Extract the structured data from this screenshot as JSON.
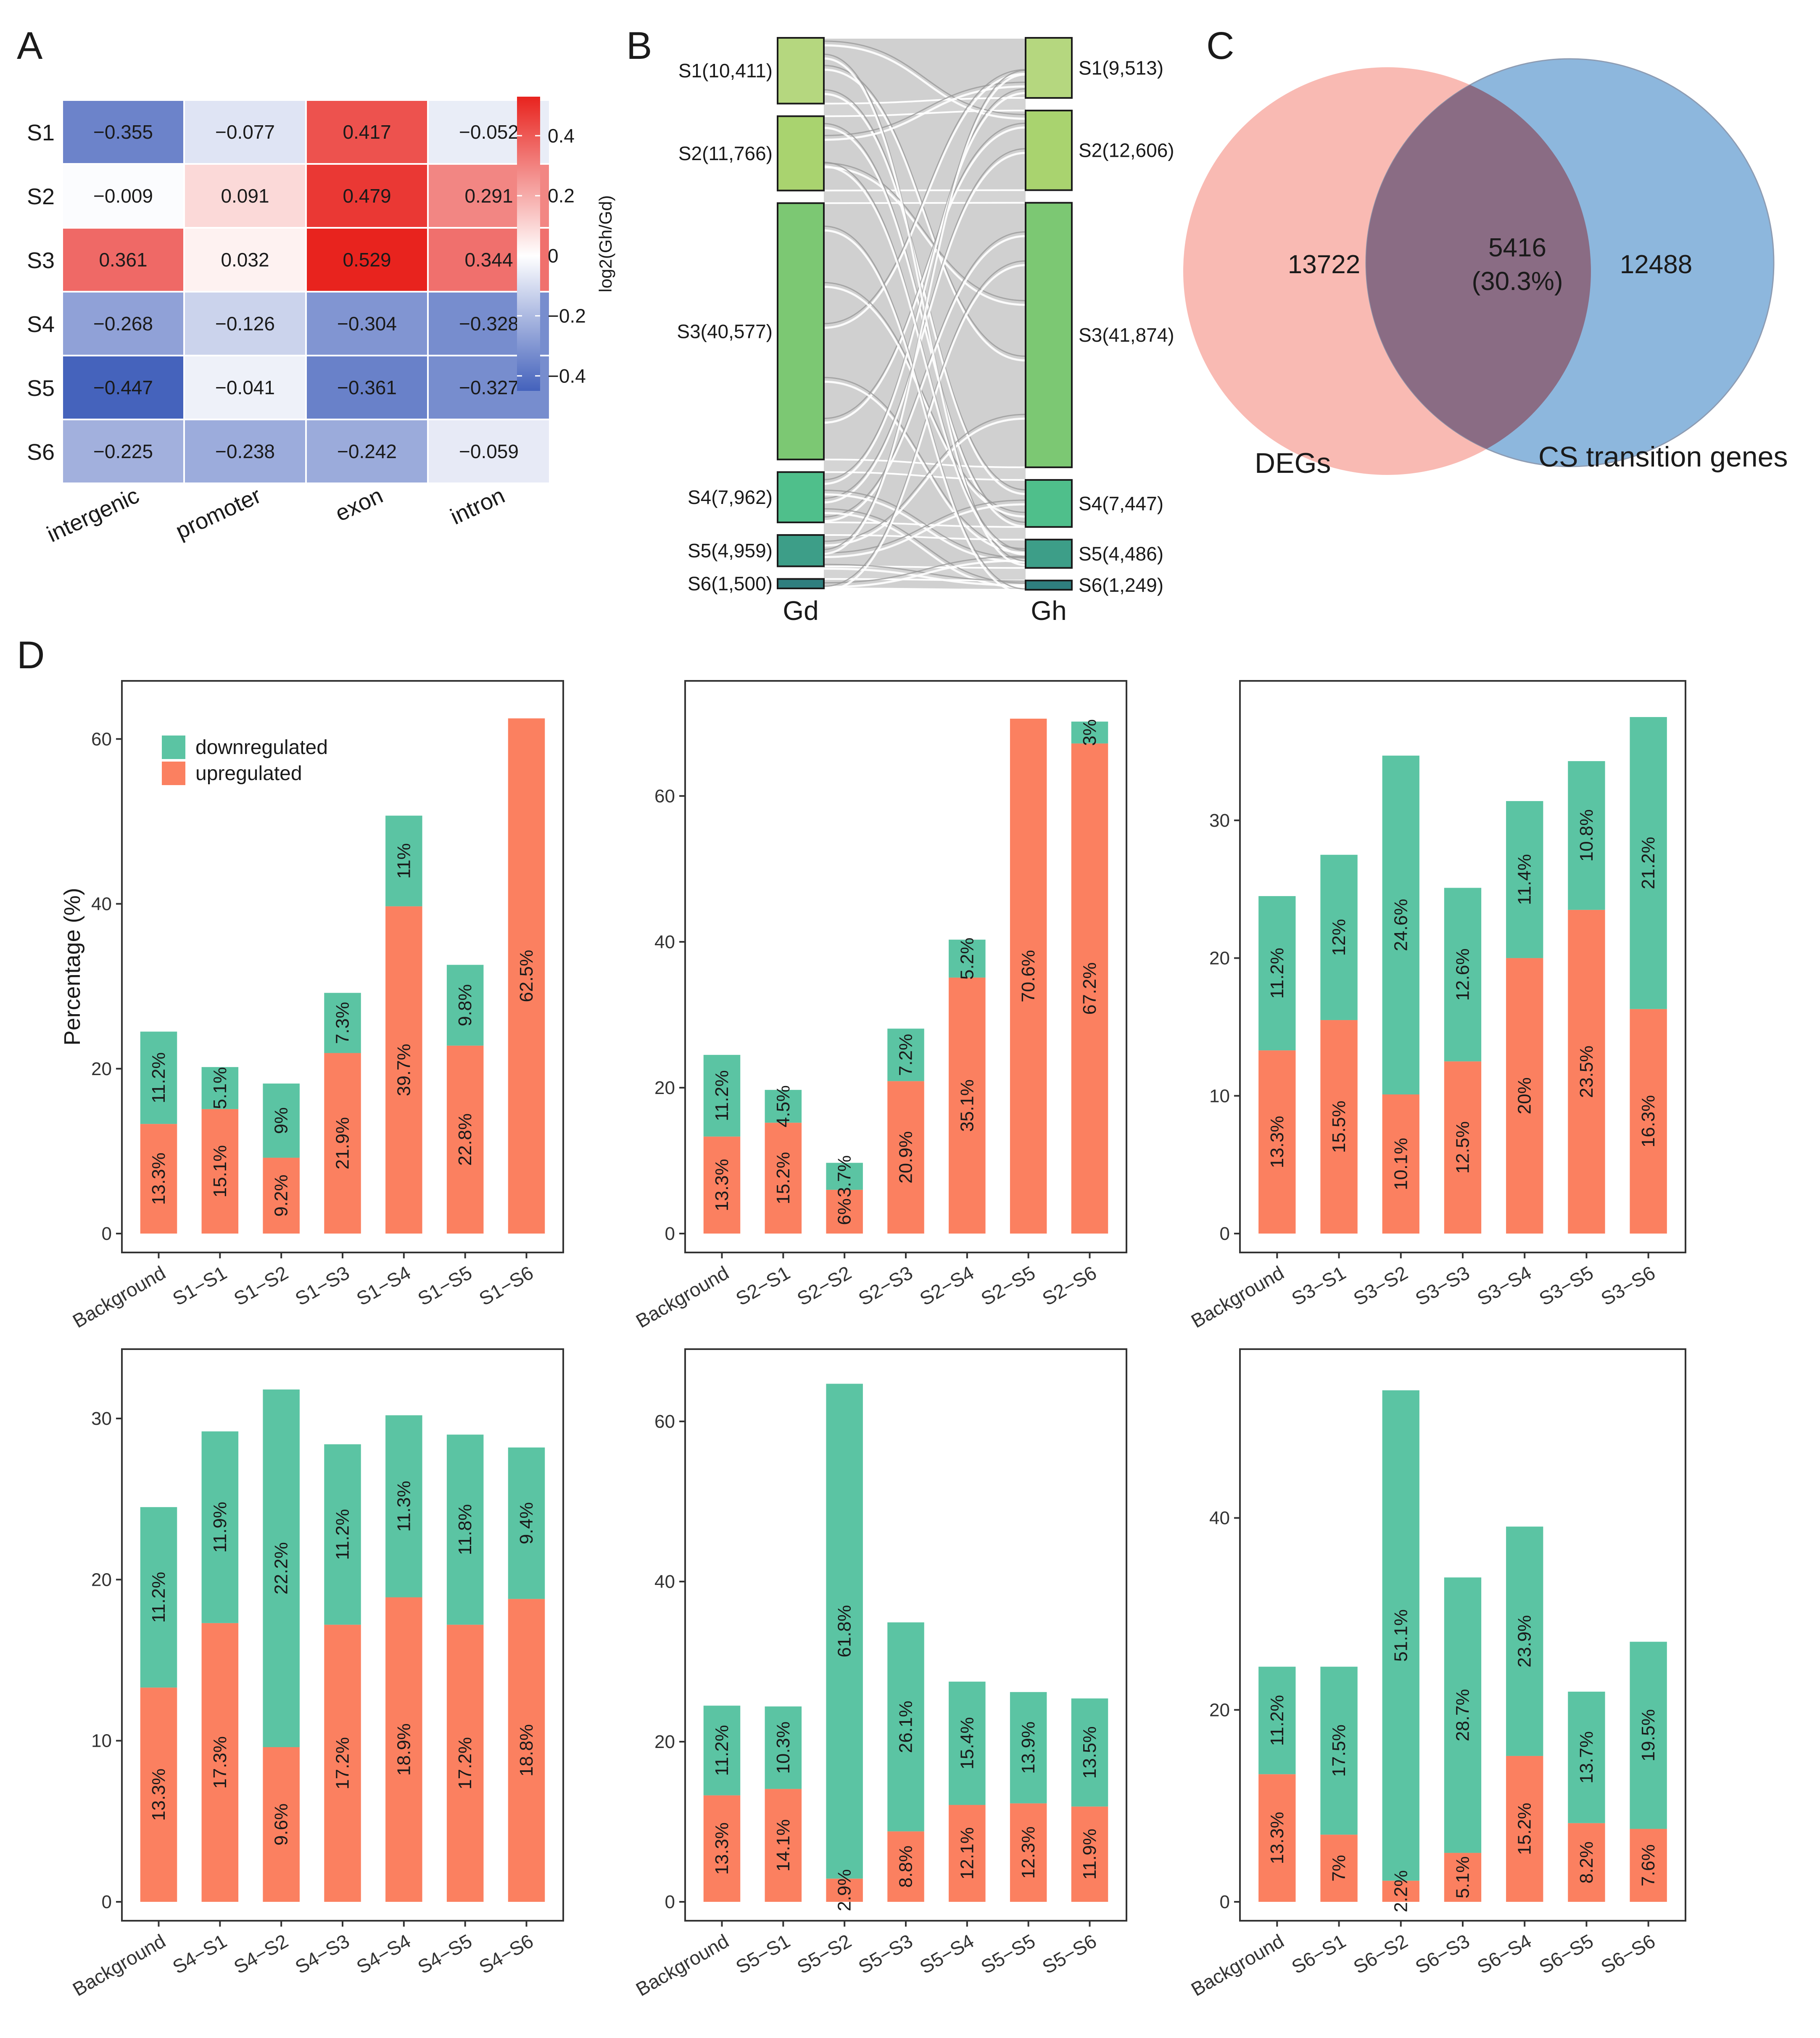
{
  "panels": {
    "A": {
      "label": "A"
    },
    "B": {
      "label": "B"
    },
    "C": {
      "label": "C"
    },
    "D": {
      "label": "D"
    }
  },
  "chart_data": [
    {
      "id": "A",
      "type": "heatmap",
      "rows": [
        "S1",
        "S2",
        "S3",
        "S4",
        "S5",
        "S6"
      ],
      "columns": [
        "intergenic",
        "promoter",
        "exon",
        "intron"
      ],
      "values": [
        [
          -0.355,
          -0.077,
          0.417,
          -0.052
        ],
        [
          -0.009,
          0.091,
          0.479,
          0.291
        ],
        [
          0.361,
          0.032,
          0.529,
          0.344
        ],
        [
          -0.268,
          -0.126,
          -0.304,
          -0.328
        ],
        [
          -0.447,
          -0.041,
          -0.361,
          -0.327
        ],
        [
          -0.225,
          -0.238,
          -0.242,
          -0.059
        ]
      ],
      "cell_labels": [
        [
          "−0.355",
          "−0.077",
          "0.417",
          "−0.052"
        ],
        [
          "−0.009",
          "0.091",
          "0.479",
          "0.291"
        ],
        [
          "0.361",
          "0.032",
          "0.529",
          "0.344"
        ],
        [
          "−0.268",
          "−0.126",
          "−0.304",
          "−0.328"
        ],
        [
          "−0.447",
          "−0.041",
          "−0.361",
          "−0.327"
        ],
        [
          "−0.225",
          "−0.238",
          "−0.242",
          "−0.059"
        ]
      ],
      "legend_title": "log2(Gh/Gd)",
      "legend_range": [
        -0.45,
        0.53
      ],
      "legend_ticks": [
        0.4,
        0.2,
        0,
        -0.2,
        -0.4
      ],
      "legend_tick_labels": [
        "0.4",
        "0.2",
        "0",
        "−0.2",
        "−0.4"
      ],
      "colors": {
        "low": "#2346b0",
        "mid": "#ffffff",
        "high": "#e8231e"
      }
    },
    {
      "id": "B",
      "type": "sankey",
      "left_axis": "Gd",
      "right_axis": "Gh",
      "left_nodes": [
        {
          "label": "S1(10,411)",
          "value": 10411
        },
        {
          "label": "S2(11,766)",
          "value": 11766
        },
        {
          "label": "S3(40,577)",
          "value": 40577
        },
        {
          "label": "S4(7,962)",
          "value": 7962
        },
        {
          "label": "S5(4,959)",
          "value": 4959
        },
        {
          "label": "S6(1,500)",
          "value": 1500
        }
      ],
      "right_nodes": [
        {
          "label": "S1(9,513)",
          "value": 9513
        },
        {
          "label": "S2(12,606)",
          "value": 12606
        },
        {
          "label": "S3(41,874)",
          "value": 41874
        },
        {
          "label": "S4(7,447)",
          "value": 7447
        },
        {
          "label": "S5(4,486)",
          "value": 4486
        },
        {
          "label": "S6(1,249)",
          "value": 1249
        }
      ],
      "node_colors": [
        "#b5d77f",
        "#a9d36f",
        "#7cc873",
        "#4fbf8b",
        "#3d9e88",
        "#2f7f7f"
      ]
    },
    {
      "id": "C",
      "type": "venn",
      "sets": [
        {
          "name": "DEGs",
          "only": "13722",
          "color": "#f7a9a0"
        },
        {
          "name": "CS transition genes",
          "only": "12488",
          "color": "#7aabd8"
        }
      ],
      "overlap": {
        "count": "5416",
        "percent": "(30.3%)"
      }
    },
    {
      "id": "D",
      "type": "bar",
      "stacked": true,
      "ylabel": "Percentage (%)",
      "legend": [
        {
          "name": "downregulated",
          "color": "#5bc4a3"
        },
        {
          "name": "upregulated",
          "color": "#fb8060"
        }
      ],
      "subplots": [
        {
          "categories": [
            "Background",
            "S1−S1",
            "S1−S2",
            "S1−S3",
            "S1−S4",
            "S1−S5",
            "S1−S6"
          ],
          "up": [
            13.3,
            15.1,
            9.2,
            21.9,
            39.7,
            22.8,
            62.5
          ],
          "down": [
            11.2,
            5.1,
            9,
            7.3,
            11,
            9.8,
            0
          ],
          "up_labels": [
            "13.3%",
            "15.1%",
            "9.2%",
            "21.9%",
            "39.7%",
            "22.8%",
            "62.5%"
          ],
          "down_labels": [
            "11.2%",
            "5.1%",
            "9%",
            "7.3%",
            "11%",
            "9.8%",
            ""
          ],
          "ylim": [
            0,
            64.5
          ],
          "yticks": [
            0,
            20,
            40,
            60
          ],
          "show_legend": true
        },
        {
          "categories": [
            "Background",
            "S2−S1",
            "S2−S2",
            "S2−S3",
            "S2−S4",
            "S2−S5",
            "S2−S6"
          ],
          "up": [
            13.3,
            15.2,
            6,
            20.9,
            35.1,
            70.6,
            67.2
          ],
          "down": [
            11.2,
            4.5,
            3.7,
            7.2,
            5.2,
            0,
            3
          ],
          "up_labels": [
            "13.3%",
            "15.2%",
            "6%",
            "20.9%",
            "35.1%",
            "70.6%",
            "67.2%"
          ],
          "down_labels": [
            "11.2%",
            "4.5%",
            "3.7%",
            "7.2%",
            "5.2%",
            "",
            "3%"
          ],
          "ylim": [
            0,
            72.9
          ],
          "yticks": [
            0,
            20,
            40,
            60
          ],
          "show_legend": false
        },
        {
          "categories": [
            "Background",
            "S3−S1",
            "S3−S2",
            "S3−S3",
            "S3−S4",
            "S3−S5",
            "S3−S6"
          ],
          "up": [
            13.3,
            15.5,
            10.1,
            12.5,
            20,
            23.5,
            16.3
          ],
          "down": [
            11.2,
            12,
            24.6,
            12.6,
            11.4,
            10.8,
            21.2
          ],
          "up_labels": [
            "13.3%",
            "15.5%",
            "10.1%",
            "12.5%",
            "20%",
            "23.5%",
            "16.3%"
          ],
          "down_labels": [
            "11.2%",
            "12%",
            "24.6%",
            "12.6%",
            "11.4%",
            "10.8%",
            "21.2%"
          ],
          "ylim": [
            0,
            38.6
          ],
          "yticks": [
            0,
            10,
            20,
            30
          ],
          "show_legend": false
        },
        {
          "categories": [
            "Background",
            "S4−S1",
            "S4−S2",
            "S4−S3",
            "S4−S4",
            "S4−S5",
            "S4−S6"
          ],
          "up": [
            13.3,
            17.3,
            9.6,
            17.2,
            18.9,
            17.2,
            18.8
          ],
          "down": [
            11.2,
            11.9,
            22.2,
            11.2,
            11.3,
            11.8,
            9.4
          ],
          "up_labels": [
            "13.3%",
            "17.3%",
            "9.6%",
            "17.2%",
            "18.9%",
            "17.2%",
            "18.8%"
          ],
          "down_labels": [
            "11.2%",
            "11.9%",
            "22.2%",
            "11.2%",
            "11.3%",
            "11.8%",
            "9.4%"
          ],
          "ylim": [
            0,
            33.0
          ],
          "yticks": [
            0,
            10,
            20,
            30
          ],
          "show_legend": false
        },
        {
          "categories": [
            "Background",
            "S5−S1",
            "S5−S2",
            "S5−S3",
            "S5−S4",
            "S5−S5",
            "S5−S6"
          ],
          "up": [
            13.3,
            14.1,
            2.9,
            8.8,
            12.1,
            12.3,
            11.9
          ],
          "down": [
            11.2,
            10.3,
            61.8,
            26.1,
            15.4,
            13.9,
            13.5
          ],
          "up_labels": [
            "13.3%",
            "14.1%",
            "2.9%",
            "8.8%",
            "12.1%",
            "12.3%",
            "11.9%"
          ],
          "down_labels": [
            "11.2%",
            "10.3%",
            "61.8%",
            "26.1%",
            "15.4%",
            "13.9%",
            "13.5%"
          ],
          "ylim": [
            0,
            66.4
          ],
          "yticks": [
            0,
            20,
            40,
            60
          ],
          "show_legend": false
        },
        {
          "categories": [
            "Background",
            "S6−S1",
            "S6−S2",
            "S6−S3",
            "S6−S4",
            "S6−S5",
            "S6−S6"
          ],
          "up": [
            13.3,
            7,
            2.2,
            5.1,
            15.2,
            8.2,
            7.6
          ],
          "down": [
            11.2,
            17.5,
            51.1,
            28.7,
            23.9,
            13.7,
            19.5
          ],
          "up_labels": [
            "13.3%",
            "7%",
            "2.2%",
            "5.1%",
            "15.2%",
            "8.2%",
            "7.6%"
          ],
          "down_labels": [
            "11.2%",
            "17.5%",
            "51.1%",
            "28.7%",
            "23.9%",
            "13.7%",
            "19.5%"
          ],
          "ylim": [
            0,
            55.4
          ],
          "yticks": [
            0,
            20,
            40
          ],
          "show_legend": false
        }
      ]
    }
  ]
}
